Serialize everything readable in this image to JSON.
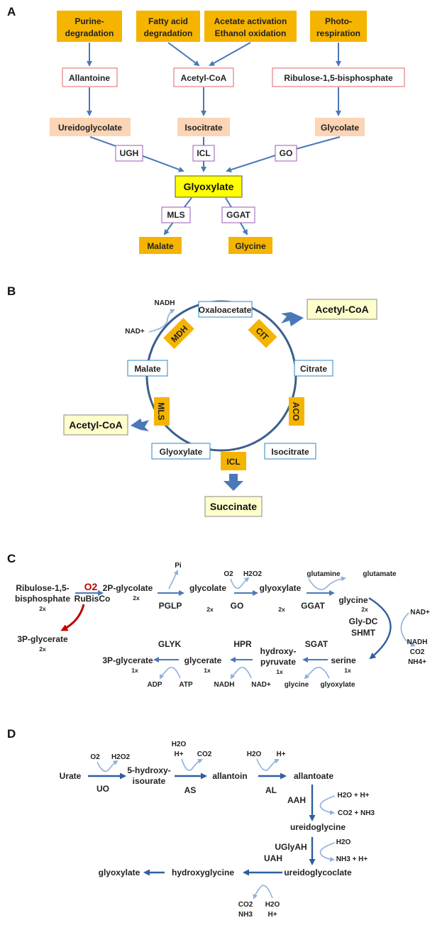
{
  "panel_a": {
    "letter": "A",
    "sources": [
      "Purine-",
      "degradation",
      "Fatty acid",
      "degradation",
      "Acetate activation",
      "Ethanol oxidation",
      "Photo-",
      "respiration"
    ],
    "intermediates": [
      "Allantoine",
      "Acetyl-CoA",
      "Ribulose-1,5-bisphosphate"
    ],
    "precursors": [
      "Ureidoglycolate",
      "Isocitrate",
      "Glycolate"
    ],
    "enzymes": [
      "UGH",
      "ICL",
      "GO",
      "MLS",
      "GGAT"
    ],
    "center": "Glyoxylate",
    "products": [
      "Malate",
      "Glycine"
    ]
  },
  "panel_b": {
    "letter": "B",
    "cofactors": [
      "NADH",
      "NAD+"
    ],
    "metabolites": [
      "Oxaloacetate",
      "Citrate",
      "Isocitrate",
      "Glyoxylate",
      "Malate"
    ],
    "enzymes": [
      "MDH",
      "CIT",
      "ACO",
      "ICL",
      "MLS"
    ],
    "inputs": [
      "Acetyl-CoA",
      "Acetyl-CoA"
    ],
    "output": "Succinate"
  },
  "panel_c": {
    "letter": "C",
    "texts": {
      "rubp1": "Ribulose-1,5-",
      "rubp2": "bisphosphate",
      "x2a": "2x",
      "o2": "O2",
      "rubisco": "RuBisCo",
      "pg3": "3P-glycerate",
      "x2b": "2x",
      "pg2": "2P-glycolate",
      "x2c": "2x",
      "pi": "Pi",
      "pglp": "PGLP",
      "glycolate": "glycolate",
      "x2d": "2x",
      "o2b": "O2",
      "h2o2": "H2O2",
      "go": "GO",
      "glyoxylate": "glyoxylate",
      "x2e": "2x",
      "glutamine": "glutamine",
      "glutamate": "glutamate",
      "ggat": "GGAT",
      "glycine": "glycine",
      "x2f": "2x",
      "glydc": "Gly-DC",
      "shmt": "SHMT",
      "nadp": "NAD+",
      "nadh": "NADH",
      "co2": "CO2",
      "nh4": "NH4+",
      "serine": "serine",
      "x1a": "1x",
      "sgat": "SGAT",
      "glycine2": "glycine",
      "glyoxylate2": "glyoxylate",
      "hp1": "hydroxy-",
      "hp2": "pyruvate",
      "x1b": "1x",
      "hpr": "HPR",
      "nadh2": "NADH",
      "nad2": "NAD+",
      "glycerate": "glycerate",
      "x1c": "1x",
      "glyk": "GLYK",
      "adp": "ADP",
      "atp": "ATP",
      "pg3b": "3P-glycerate",
      "x1d": "1x"
    }
  },
  "panel_d": {
    "letter": "D",
    "texts": {
      "urate": "Urate",
      "o2": "O2",
      "h2o2": "H2O2",
      "uo": "UO",
      "hiu1": "5-hydroxy-",
      "hiu2": "isourate",
      "h2o": "H2O",
      "hplus": "H+",
      "co2": "CO2",
      "as": "AS",
      "allantoin": "allantoin",
      "h2o2b": "H2O",
      "hplus2": "H+",
      "al": "AL",
      "allantoate": "allantoate",
      "aah": "AAH",
      "h2oh": "H2O + H+",
      "co2nh3": "CO2 + NH3",
      "ureidoglycine": "ureidoglycine",
      "uglyah": "UGlyAH",
      "h2o3": "H2O",
      "nh3h": "NH3 + H+",
      "uah": "UAH",
      "ureidoglycolate": "ureidoglycoclate",
      "co2b": "CO2",
      "nh3": "NH3",
      "h2o4": "H2O",
      "hplus3": "H+",
      "hydroxyglycine": "hydroxyglycine",
      "glyoxylate": "glyoxylate"
    }
  },
  "colors": {
    "orange": "#f5b400",
    "peach": "#fbd5b5",
    "yellow": "#ffff00",
    "lightyellow": "#ffffcc",
    "red_border": "#e06666",
    "purple_border": "#9b59b6",
    "blue_border": "#2e86c1",
    "arrow": "#4a78b8",
    "red_arrow": "#c00000"
  }
}
